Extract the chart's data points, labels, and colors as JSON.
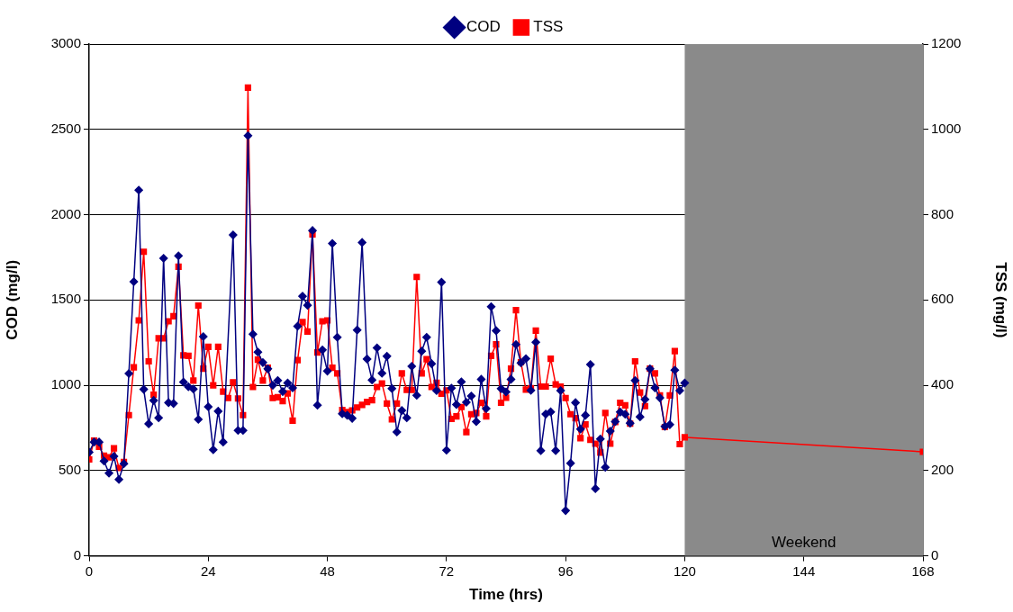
{
  "chart_data": {
    "type": "line",
    "xlabel": "Time (hrs)",
    "ylabel": "COD (mg/l)",
    "y2label": "TSS (mg/l)",
    "xlim": [
      0,
      168
    ],
    "xticks": [
      0,
      24,
      48,
      72,
      96,
      120,
      144,
      168
    ],
    "ylim": [
      0,
      3000
    ],
    "yticks": [
      0,
      500,
      1000,
      1500,
      2000,
      2500,
      3000
    ],
    "y2lim": [
      0,
      1200
    ],
    "y2ticks": [
      0,
      200,
      400,
      600,
      800,
      1000,
      1200
    ],
    "grid": "y",
    "legend": "top",
    "line_style": "solid",
    "bands": [
      {
        "axis": "x",
        "from": 120,
        "to": 168,
        "label": "Weekend",
        "color": "#8a8a8a"
      }
    ],
    "series": [
      {
        "name": "COD",
        "color": "#000080",
        "marker": "diamond",
        "x": [
          0,
          1,
          2,
          3,
          4,
          5,
          6,
          7,
          8,
          9,
          10,
          11,
          12,
          13,
          14,
          15,
          16,
          17,
          18,
          19,
          20,
          21,
          22,
          23,
          24,
          25,
          26,
          27,
          29,
          30,
          31,
          32,
          33,
          34,
          35,
          36,
          37,
          38,
          39,
          40,
          41,
          42,
          43,
          44,
          45,
          46,
          47,
          48,
          49,
          50,
          51,
          52,
          53,
          54,
          55,
          56,
          57,
          58,
          59,
          60,
          61,
          62,
          63,
          64,
          65,
          66,
          67,
          68,
          69,
          70,
          71,
          72,
          73,
          74,
          75,
          76,
          77,
          78,
          79,
          80,
          81,
          82,
          83,
          84,
          85,
          86,
          87,
          88,
          89,
          90,
          91,
          92,
          93,
          94,
          95,
          96,
          97,
          98,
          99,
          100,
          101,
          102,
          103,
          104,
          105,
          106,
          107,
          108,
          109,
          110,
          111,
          112,
          113,
          114,
          115,
          116,
          117,
          118,
          119,
          120
        ],
        "values": [
          607,
          667,
          667,
          556,
          485,
          583,
          448,
          540,
          1069,
          1607,
          2144,
          976,
          774,
          911,
          809,
          1744,
          898,
          893,
          1759,
          1019,
          991,
          978,
          800,
          1285,
          874,
          622,
          848,
          667,
          1881,
          735,
          735,
          2463,
          1300,
          1194,
          1133,
          1096,
          1000,
          1028,
          963,
          1013,
          985,
          1346,
          1522,
          1469,
          1907,
          883,
          1207,
          1083,
          1831,
          1281,
          833,
          824,
          806,
          1324,
          1837,
          1154,
          1031,
          1219,
          1070,
          1170,
          981,
          726,
          852,
          809,
          1111,
          941,
          1200,
          1281,
          1126,
          969,
          1604,
          619,
          983,
          887,
          1020,
          900,
          937,
          787,
          1035,
          863,
          1461,
          1320,
          980,
          961,
          1035,
          1239,
          1131,
          1156,
          970,
          1252,
          617,
          831,
          844,
          617,
          969,
          265,
          543,
          898,
          743,
          824,
          1122,
          394,
          685,
          519,
          731,
          787,
          843,
          830,
          778,
          1028,
          815,
          917,
          1096,
          985,
          926,
          759,
          769,
          1089,
          969,
          1013
        ]
      },
      {
        "name": "TSS",
        "color": "#ff0000",
        "marker": "square",
        "axis": "y2",
        "x": [
          0,
          1,
          2,
          3,
          4,
          5,
          6,
          7,
          8,
          9,
          10,
          11,
          12,
          13,
          14,
          15,
          16,
          17,
          18,
          19,
          20,
          21,
          22,
          23,
          24,
          25,
          26,
          27,
          28,
          29,
          30,
          31,
          32,
          33,
          34,
          35,
          36,
          37,
          38,
          39,
          40,
          41,
          42,
          43,
          44,
          45,
          46,
          47,
          48,
          49,
          50,
          51,
          52,
          53,
          54,
          55,
          56,
          57,
          58,
          59,
          60,
          61,
          62,
          63,
          64,
          65,
          66,
          67,
          68,
          69,
          70,
          71,
          72,
          73,
          74,
          75,
          76,
          77,
          78,
          79,
          80,
          81,
          82,
          83,
          84,
          85,
          86,
          87,
          88,
          89,
          90,
          91,
          92,
          93,
          94,
          95,
          96,
          97,
          98,
          99,
          100,
          101,
          102,
          103,
          104,
          105,
          106,
          107,
          108,
          109,
          110,
          111,
          112,
          113,
          114,
          115,
          116,
          117,
          118,
          119,
          120,
          168
        ],
        "values": [
          226,
          270,
          256,
          235,
          231,
          252,
          206,
          220,
          330,
          442,
          552,
          713,
          456,
          378,
          510,
          510,
          550,
          562,
          678,
          470,
          469,
          411,
          587,
          439,
          490,
          400,
          490,
          385,
          370,
          407,
          369,
          330,
          1098,
          396,
          460,
          411,
          441,
          370,
          372,
          363,
          381,
          317,
          459,
          548,
          526,
          754,
          477,
          550,
          552,
          441,
          428,
          342,
          337,
          341,
          348,
          354,
          361,
          365,
          396,
          404,
          357,
          320,
          357,
          428,
          389,
          389,
          654,
          428,
          461,
          396,
          406,
          380,
          388,
          321,
          327,
          349,
          290,
          332,
          335,
          359,
          327,
          469,
          496,
          359,
          371,
          439,
          576,
          454,
          390,
          393,
          528,
          397,
          397,
          462,
          402,
          397,
          370,
          332,
          323,
          276,
          308,
          272,
          263,
          242,
          335,
          263,
          314,
          359,
          353,
          310,
          456,
          383,
          351,
          439,
          428,
          376,
          302,
          376,
          480,
          262,
          278,
          244
        ]
      }
    ]
  }
}
